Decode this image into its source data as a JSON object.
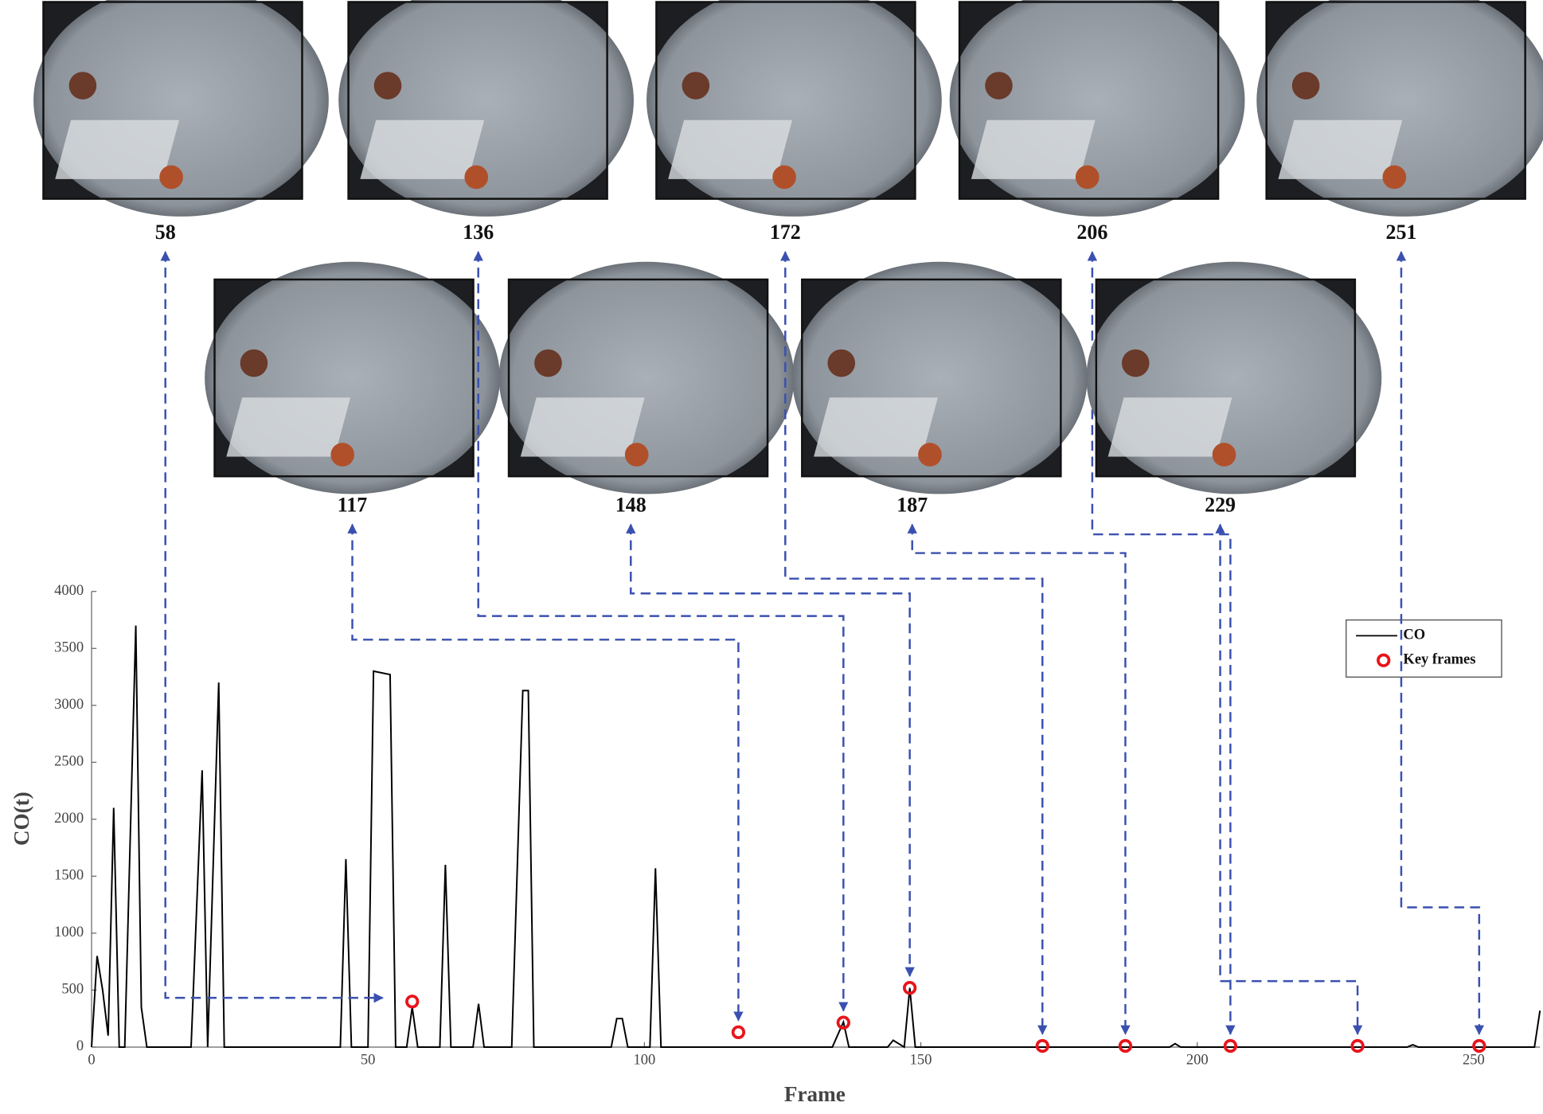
{
  "chart_data": {
    "type": "line",
    "xlabel": "Frame",
    "ylabel": "CO(t)",
    "xlim": [
      0,
      262
    ],
    "xticks": [
      0,
      50,
      100,
      150,
      200,
      250
    ],
    "ylim": [
      0,
      4000
    ],
    "yticks": [
      0,
      500,
      1000,
      1500,
      2000,
      2500,
      3000,
      3500,
      4000
    ],
    "series": [
      {
        "name": "CO",
        "color": "#000000",
        "x": [
          0,
          1,
          2,
          3,
          4,
          5,
          6,
          8,
          9,
          10,
          18,
          20,
          21,
          23,
          24,
          45,
          46,
          47,
          50,
          51,
          54,
          55,
          57,
          58,
          59,
          63,
          64,
          65,
          69,
          70,
          71,
          76,
          78,
          79,
          80,
          94,
          95,
          96,
          97,
          101,
          102,
          103,
          134,
          136,
          137,
          144,
          145,
          147,
          148,
          149,
          195,
          196,
          197,
          238,
          239,
          240,
          261,
          262
        ],
        "values": [
          0,
          800,
          500,
          100,
          2100,
          0,
          0,
          3700,
          350,
          0,
          0,
          2430,
          0,
          3200,
          0,
          0,
          1650,
          0,
          0,
          3300,
          3270,
          0,
          0,
          350,
          0,
          0,
          1600,
          0,
          0,
          380,
          0,
          0,
          3130,
          3130,
          0,
          0,
          250,
          250,
          0,
          0,
          1570,
          0,
          0,
          220,
          0,
          0,
          60,
          0,
          520,
          0,
          0,
          30,
          0,
          0,
          20,
          0,
          0,
          320
        ]
      },
      {
        "name": "Key frames",
        "type": "scatter",
        "color": "#e8141b",
        "x": [
          58,
          117,
          136,
          148,
          172,
          187,
          206,
          229,
          251
        ],
        "values": [
          400,
          130,
          215,
          520,
          10,
          10,
          10,
          10,
          10
        ]
      }
    ]
  }
}
